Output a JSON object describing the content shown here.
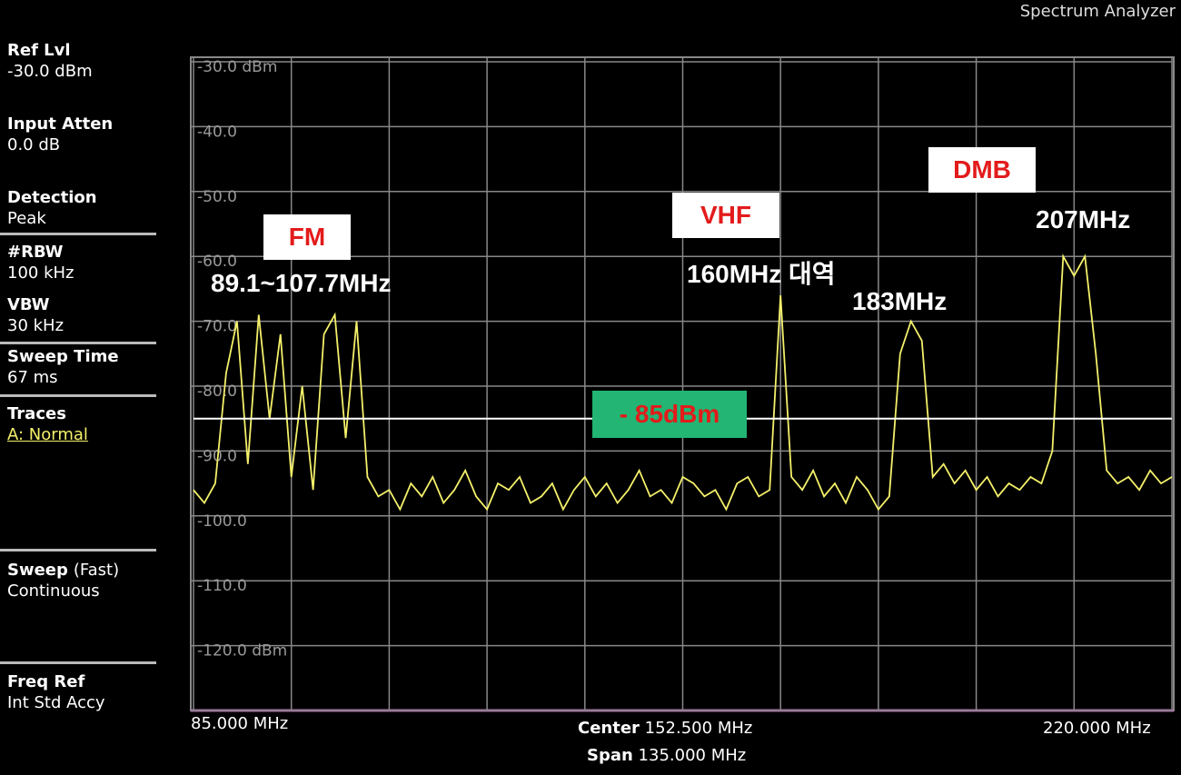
{
  "header": {
    "title": "Spectrum Analyzer"
  },
  "sidebar": [
    {
      "label": "Ref Lvl",
      "value": "-30.0 dBm"
    },
    {
      "label": "Input Atten",
      "value": "0.0 dB"
    },
    {
      "label": "Detection",
      "value": "Peak"
    },
    {
      "label": "#RBW",
      "value": "100 kHz"
    },
    {
      "label": "VBW",
      "value": "30 kHz"
    },
    {
      "label": "Sweep Time",
      "value": "67 ms"
    },
    {
      "label": "Traces",
      "value": "A: Normal"
    },
    {
      "label": "Sweep",
      "extra": "(Fast)",
      "value": "Continuous"
    },
    {
      "label": "Freq Ref",
      "value": "Int Std Accy"
    }
  ],
  "footer": {
    "start": "85.000 MHz",
    "center_label": "Center",
    "center": "152.500 MHz",
    "span_label": "Span",
    "span": "135.000 MHz",
    "stop": "220.000 MHz"
  },
  "chart_data": {
    "type": "line",
    "xlim": [
      85,
      220
    ],
    "ylim": [
      -130,
      -30
    ],
    "xticks": [
      85,
      98.5,
      112,
      125.5,
      139,
      152.5,
      166,
      179.5,
      193,
      206.5,
      220
    ],
    "yticks": [
      {
        "value": -30,
        "label": "-30.0 dBm"
      },
      {
        "value": -40,
        "label": "-40.0"
      },
      {
        "value": -50,
        "label": "-50.0"
      },
      {
        "value": -60,
        "label": "-60.0"
      },
      {
        "value": -70,
        "label": "-70.0"
      },
      {
        "value": -80,
        "label": "-80.0"
      },
      {
        "value": -90,
        "label": "-90.0"
      },
      {
        "value": -100,
        "label": "-100.0"
      },
      {
        "value": -110,
        "label": "-110.0"
      },
      {
        "value": -120,
        "label": "-120.0 dBm"
      },
      -130
    ],
    "grid": true,
    "x": [
      85,
      86.5,
      88,
      89.5,
      91,
      92.5,
      94,
      95.5,
      97,
      98.5,
      100,
      101.5,
      103,
      104.5,
      106,
      107.5,
      109,
      110.5,
      112,
      113.5,
      115,
      116.5,
      118,
      119.5,
      121,
      122.5,
      124,
      125.5,
      127,
      128.5,
      130,
      131.5,
      133,
      134.5,
      136,
      137.5,
      139,
      140.5,
      142,
      143.5,
      145,
      146.5,
      148,
      149.5,
      151,
      152.5,
      154,
      155.5,
      157,
      158.5,
      160,
      161.5,
      163,
      164.5,
      166,
      167.5,
      169,
      170.5,
      172,
      173.5,
      175,
      176.5,
      178,
      179.5,
      181,
      182.5,
      184,
      185.5,
      187,
      188.5,
      190,
      191.5,
      193,
      194.5,
      196,
      197.5,
      199,
      200.5,
      202,
      203.5,
      205,
      206.5,
      208,
      209.5,
      211,
      212.5,
      214,
      215.5,
      217,
      218.5,
      220
    ],
    "series": [
      {
        "name": "A",
        "color": "#f4f06a",
        "values": [
          -96,
          -98,
          -95,
          -78,
          -70,
          -92,
          -69,
          -85,
          -72,
          -94,
          -80,
          -96,
          -72,
          -69,
          -88,
          -70,
          -94,
          -97,
          -96,
          -99,
          -95,
          -97,
          -94,
          -98,
          -96,
          -93,
          -97,
          -99,
          -95,
          -96,
          -94,
          -98,
          -97,
          -95,
          -99,
          -96,
          -94,
          -97,
          -95,
          -98,
          -96,
          -93,
          -97,
          -96,
          -98,
          -94,
          -95,
          -97,
          -96,
          -99,
          -95,
          -94,
          -97,
          -96,
          -66,
          -94,
          -96,
          -93,
          -97,
          -95,
          -98,
          -94,
          -96,
          -99,
          -97,
          -75,
          -70,
          -73,
          -94,
          -92,
          -95,
          -93,
          -96,
          -94,
          -97,
          -95,
          -96,
          -94,
          -95,
          -90,
          -60,
          -63,
          -60,
          -75,
          -93,
          -95,
          -94,
          -96,
          -93,
          -95,
          -94
        ]
      }
    ],
    "reference": {
      "value": -85,
      "label": "- 85dBm"
    },
    "annotations": [
      {
        "text": "FM",
        "sub": "89.1~107.7MHz"
      },
      {
        "text": "VHF",
        "sub": "160MHz 대역"
      },
      {
        "text": "183MHz"
      },
      {
        "text": "DMB",
        "sub": "207MHz"
      }
    ]
  }
}
